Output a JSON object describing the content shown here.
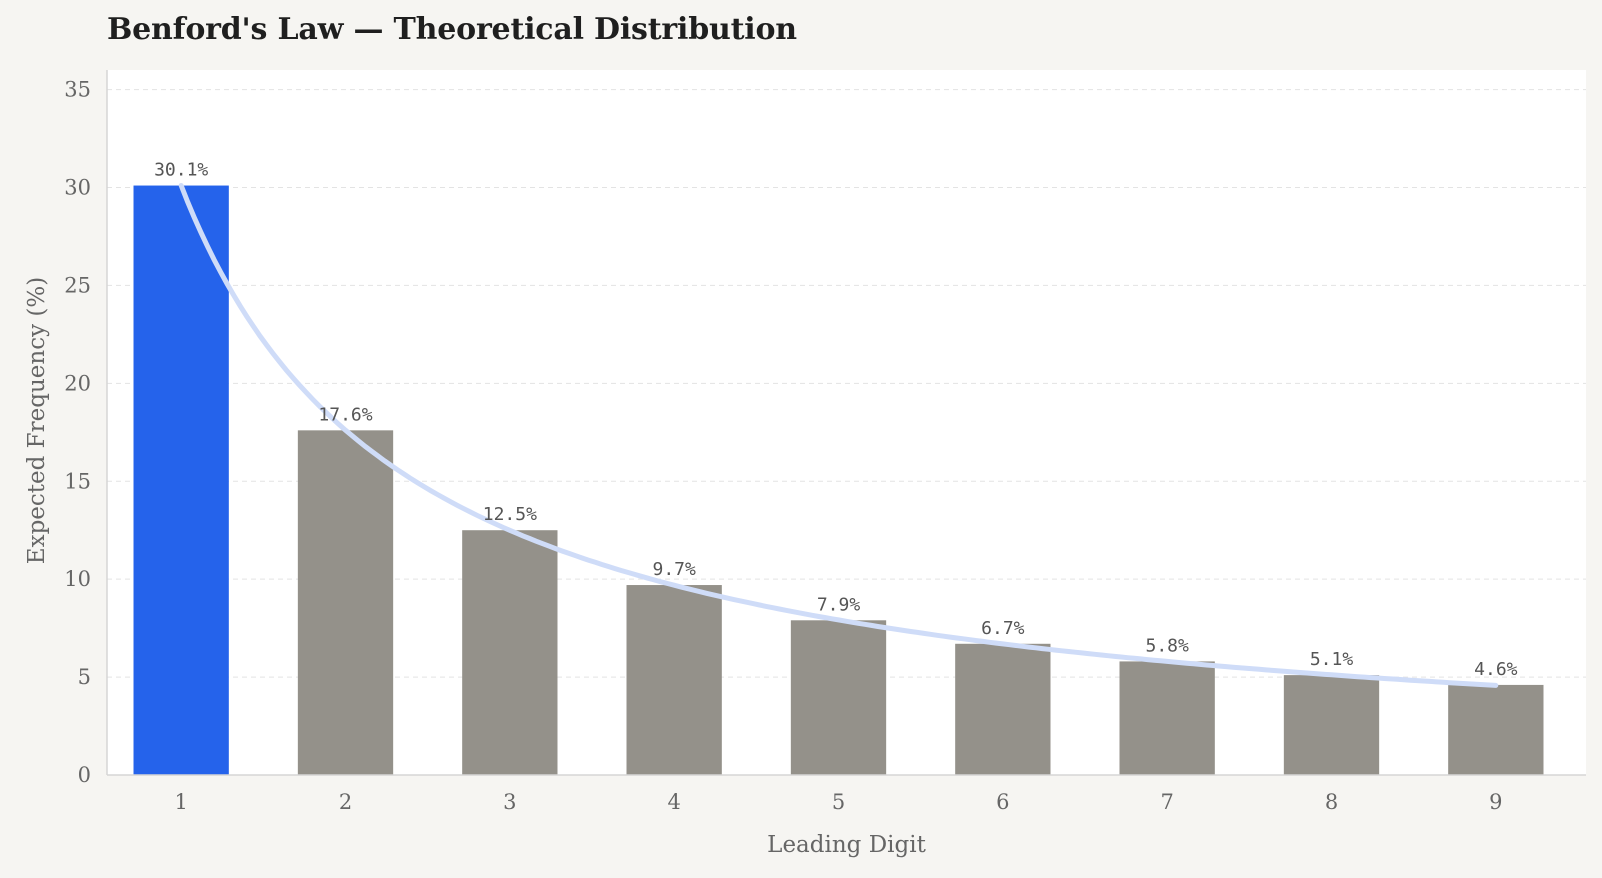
{
  "chart_data": {
    "type": "bar",
    "title": "Benford's Law — Theoretical Distribution",
    "xlabel": "Leading Digit",
    "ylabel": "Expected Frequency (%)",
    "categories": [
      "1",
      "2",
      "3",
      "4",
      "5",
      "6",
      "7",
      "8",
      "9"
    ],
    "values": [
      30.1,
      17.6,
      12.5,
      9.7,
      7.9,
      6.7,
      5.8,
      5.1,
      4.6
    ],
    "value_labels": [
      "30.1%",
      "17.6%",
      "12.5%",
      "9.7%",
      "7.9%",
      "6.7%",
      "5.8%",
      "5.1%",
      "4.6%"
    ],
    "ylim": [
      0,
      36
    ],
    "yticks": [
      0,
      5,
      10,
      15,
      20,
      25,
      30,
      35
    ],
    "grid": true,
    "highlight_index": 0,
    "overlay": "theoretical curve",
    "colors": {
      "highlight_bar": "#2563eb",
      "bar": "#94918a",
      "curve": "#cfdcf8",
      "grid": "#e3e3e3",
      "plot_background": "#ffffff",
      "page_background": "#f6f5f2"
    }
  }
}
